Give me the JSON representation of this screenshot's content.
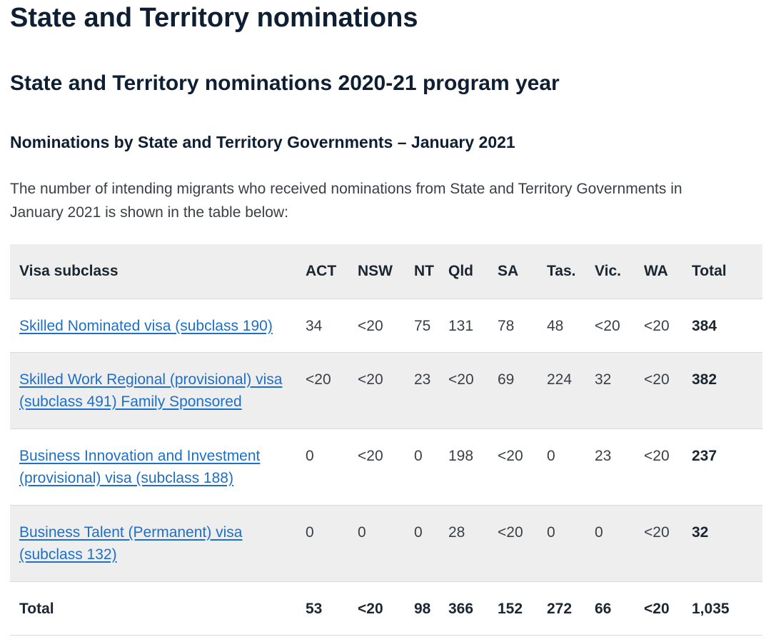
{
  "page": {
    "title": "State and Territory nominations",
    "subtitle": "State and Territory nominations 2020-21 program year",
    "section_heading": "Nominations by State and Territory Governments – January 2021",
    "intro": "The number of intending migrants who received nominations from State and Territory Governments in January 2021 is shown in the table below:"
  },
  "table": {
    "headers": [
      "Visa subclass",
      "ACT",
      "NSW",
      "NT",
      "Qld",
      "SA",
      "Tas.",
      "Vic.",
      "WA",
      "Total"
    ],
    "rows": [
      {
        "visa": "Skilled Nominated visa (subclass 190)",
        "values": [
          "34",
          "<20",
          "75",
          "131",
          "78",
          "48",
          "<20",
          "<20",
          "384"
        ]
      },
      {
        "visa": "Skilled Work Regional (provisional) visa (subclass 491) Family Sponsored",
        "values": [
          "<20",
          "<20",
          "23",
          "<20",
          "69",
          "224",
          "32",
          "<20",
          "382"
        ]
      },
      {
        "visa": "Business Innovation and Investment (provisional) visa (subclass 188)",
        "values": [
          "0",
          "<20",
          "0",
          "198",
          "<20",
          "0",
          "23",
          "<20",
          "237"
        ]
      },
      {
        "visa": "Business Talent (Permanent) visa (subclass 132)",
        "values": [
          "0",
          "0",
          "0",
          "28",
          "<20",
          "0",
          "0",
          "<20",
          "32"
        ]
      }
    ],
    "total_row": {
      "label": "Total",
      "values": [
        "53",
        "<20",
        "98",
        "366",
        "152",
        "272",
        "66",
        "<20",
        "1,035"
      ]
    }
  },
  "colors": {
    "heading": "#0f1f33",
    "link": "#1d6fc9",
    "row_shade": "#eeeeee"
  }
}
